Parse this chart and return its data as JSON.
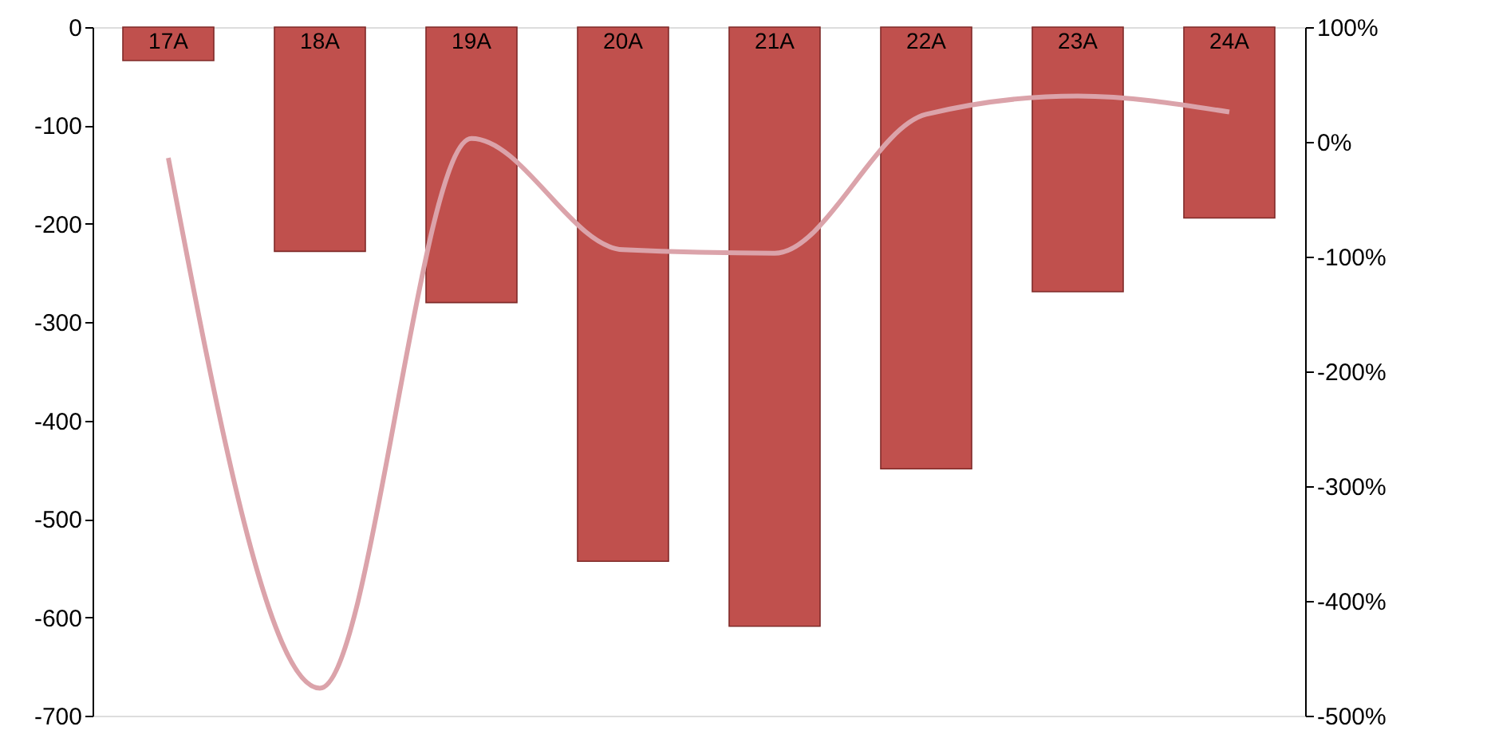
{
  "chart_data": {
    "type": "bar",
    "categories": [
      "17A",
      "18A",
      "19A",
      "20A",
      "21A",
      "22A",
      "23A",
      "24A"
    ],
    "series": [
      {
        "color": "#c0504d",
        "values": [
          -34,
          -228,
          -280,
          -543,
          -609,
          -449,
          -269,
          -194
        ]
      },
      {
        "type": "line",
        "axis": "y2",
        "color": "#dba3aa",
        "values": [
          -14,
          -476,
          3,
          -94,
          -97,
          24,
          40,
          26
        ]
      }
    ],
    "ylim": [
      -700,
      0
    ],
    "yticks": [
      -700,
      -600,
      -500,
      -400,
      -300,
      -200,
      -100,
      0
    ],
    "y2lim": [
      -500,
      100
    ],
    "y2ticks": [
      {
        "value": -500,
        "label": "-500%"
      },
      {
        "value": -400,
        "label": "-400%"
      },
      {
        "value": -300,
        "label": "-300%"
      },
      {
        "value": -200,
        "label": "-200%"
      },
      {
        "value": -100,
        "label": "-100%"
      },
      {
        "value": 0,
        "label": "0%"
      },
      {
        "value": 100,
        "label": "100%"
      }
    ],
    "grid": false
  }
}
